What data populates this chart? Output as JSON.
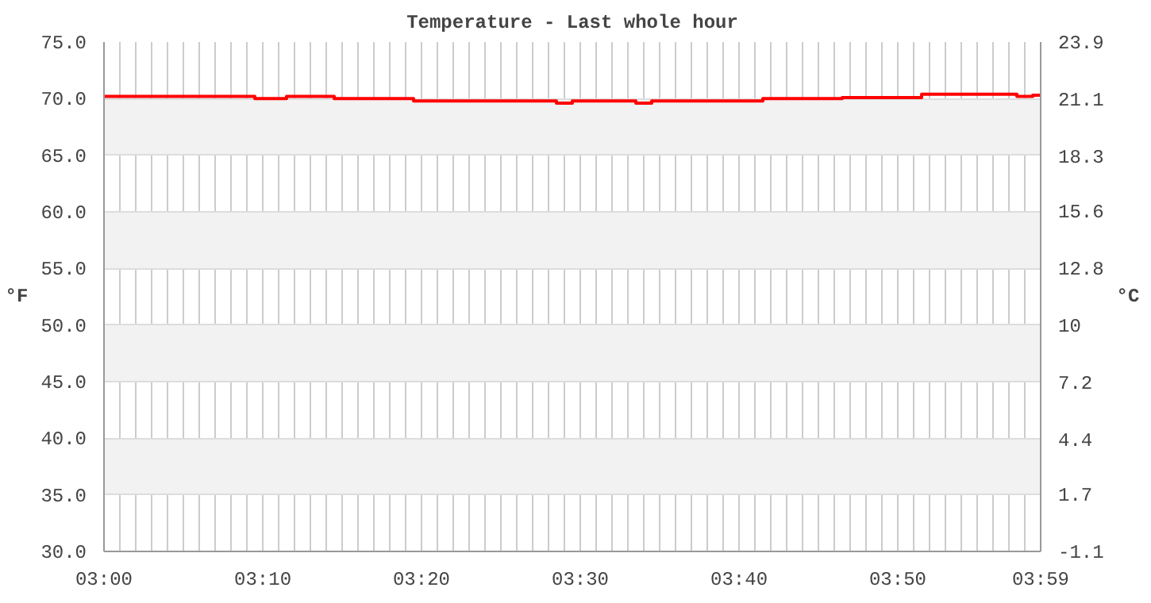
{
  "chart_data": {
    "type": "step",
    "title": "Temperature - Last whole hour",
    "ylabel": "°F",
    "y2label": "°C",
    "x": [
      3.0,
      3.0167,
      3.0333,
      3.05,
      3.0667,
      3.0833,
      3.1,
      3.1167,
      3.1333,
      3.15,
      3.1667,
      3.1833,
      3.2,
      3.2167,
      3.2333,
      3.25,
      3.2667,
      3.2833,
      3.3,
      3.3167,
      3.3333,
      3.35,
      3.3667,
      3.3833,
      3.4,
      3.4167,
      3.4333,
      3.45,
      3.4667,
      3.4833,
      3.5,
      3.5167,
      3.5333,
      3.55,
      3.5667,
      3.5833,
      3.6,
      3.6167,
      3.6333,
      3.65,
      3.6667,
      3.6833,
      3.7,
      3.7167,
      3.7333,
      3.75,
      3.7667,
      3.7833,
      3.8,
      3.8167,
      3.8333,
      3.85,
      3.8667,
      3.8833,
      3.9,
      3.9167,
      3.9333,
      3.95,
      3.9667,
      3.9833
    ],
    "series": [
      {
        "color": "#ff0000",
        "values": [
          70.2,
          70.2,
          70.2,
          70.2,
          70.2,
          70.2,
          70.2,
          70.2,
          70.2,
          70.2,
          70.0,
          70.0,
          70.2,
          70.2,
          70.2,
          70.0,
          70.0,
          70.0,
          70.0,
          70.0,
          69.8,
          69.8,
          69.8,
          69.8,
          69.8,
          69.8,
          69.8,
          69.8,
          69.8,
          69.6,
          69.8,
          69.8,
          69.8,
          69.8,
          69.6,
          69.8,
          69.8,
          69.8,
          69.8,
          69.8,
          69.8,
          69.8,
          70.0,
          70.0,
          70.0,
          70.0,
          70.0,
          70.1,
          70.1,
          70.1,
          70.1,
          70.1,
          70.4,
          70.4,
          70.4,
          70.4,
          70.4,
          70.4,
          70.2,
          70.3
        ]
      }
    ],
    "xlim": [
      3.0,
      3.9833
    ],
    "xticks": [
      {
        "value": 3.0,
        "label": "03:00"
      },
      {
        "value": 3.0167,
        "label": null
      },
      {
        "value": 3.0333,
        "label": null
      },
      {
        "value": 3.05,
        "label": null
      },
      {
        "value": 3.0667,
        "label": null
      },
      {
        "value": 3.0833,
        "label": null
      },
      {
        "value": 3.1,
        "label": null
      },
      {
        "value": 3.1167,
        "label": null
      },
      {
        "value": 3.1333,
        "label": null
      },
      {
        "value": 3.15,
        "label": null
      },
      {
        "value": 3.1667,
        "label": "03:10"
      },
      {
        "value": 3.1833,
        "label": null
      },
      {
        "value": 3.2,
        "label": null
      },
      {
        "value": 3.2167,
        "label": null
      },
      {
        "value": 3.2333,
        "label": null
      },
      {
        "value": 3.25,
        "label": null
      },
      {
        "value": 3.2667,
        "label": null
      },
      {
        "value": 3.2833,
        "label": null
      },
      {
        "value": 3.3,
        "label": null
      },
      {
        "value": 3.3167,
        "label": null
      },
      {
        "value": 3.3333,
        "label": "03:20"
      },
      {
        "value": 3.35,
        "label": null
      },
      {
        "value": 3.3667,
        "label": null
      },
      {
        "value": 3.3833,
        "label": null
      },
      {
        "value": 3.4,
        "label": null
      },
      {
        "value": 3.4167,
        "label": null
      },
      {
        "value": 3.4333,
        "label": null
      },
      {
        "value": 3.45,
        "label": null
      },
      {
        "value": 3.4667,
        "label": null
      },
      {
        "value": 3.4833,
        "label": null
      },
      {
        "value": 3.5,
        "label": "03:30"
      },
      {
        "value": 3.5167,
        "label": null
      },
      {
        "value": 3.5333,
        "label": null
      },
      {
        "value": 3.55,
        "label": null
      },
      {
        "value": 3.5667,
        "label": null
      },
      {
        "value": 3.5833,
        "label": null
      },
      {
        "value": 3.6,
        "label": null
      },
      {
        "value": 3.6167,
        "label": null
      },
      {
        "value": 3.6333,
        "label": null
      },
      {
        "value": 3.65,
        "label": null
      },
      {
        "value": 3.6667,
        "label": "03:40"
      },
      {
        "value": 3.6833,
        "label": null
      },
      {
        "value": 3.7,
        "label": null
      },
      {
        "value": 3.7167,
        "label": null
      },
      {
        "value": 3.7333,
        "label": null
      },
      {
        "value": 3.75,
        "label": null
      },
      {
        "value": 3.7667,
        "label": null
      },
      {
        "value": 3.7833,
        "label": null
      },
      {
        "value": 3.8,
        "label": null
      },
      {
        "value": 3.8167,
        "label": null
      },
      {
        "value": 3.8333,
        "label": "03:50"
      },
      {
        "value": 3.85,
        "label": null
      },
      {
        "value": 3.8667,
        "label": null
      },
      {
        "value": 3.8833,
        "label": null
      },
      {
        "value": 3.9,
        "label": null
      },
      {
        "value": 3.9167,
        "label": null
      },
      {
        "value": 3.9333,
        "label": null
      },
      {
        "value": 3.95,
        "label": null
      },
      {
        "value": 3.9667,
        "label": null
      },
      {
        "value": 3.9833,
        "label": "03:59"
      }
    ],
    "ylim": [
      30,
      75
    ],
    "yticks": [
      {
        "value": 30,
        "label": "30.0"
      },
      {
        "value": 35,
        "label": "35.0"
      },
      {
        "value": 40,
        "label": "40.0"
      },
      {
        "value": 45,
        "label": "45.0"
      },
      {
        "value": 50,
        "label": "50.0"
      },
      {
        "value": 55,
        "label": "55.0"
      },
      {
        "value": 60,
        "label": "60.0"
      },
      {
        "value": 65,
        "label": "65.0"
      },
      {
        "value": 70,
        "label": "70.0"
      },
      {
        "value": 75,
        "label": "75.0"
      }
    ],
    "y2lim": [
      -1.1,
      23.9
    ],
    "y2ticks": [
      -1.1,
      1.7,
      4.4,
      7.2,
      10,
      12.8,
      15.6,
      18.3,
      21.1,
      23.9
    ],
    "grid": true
  }
}
